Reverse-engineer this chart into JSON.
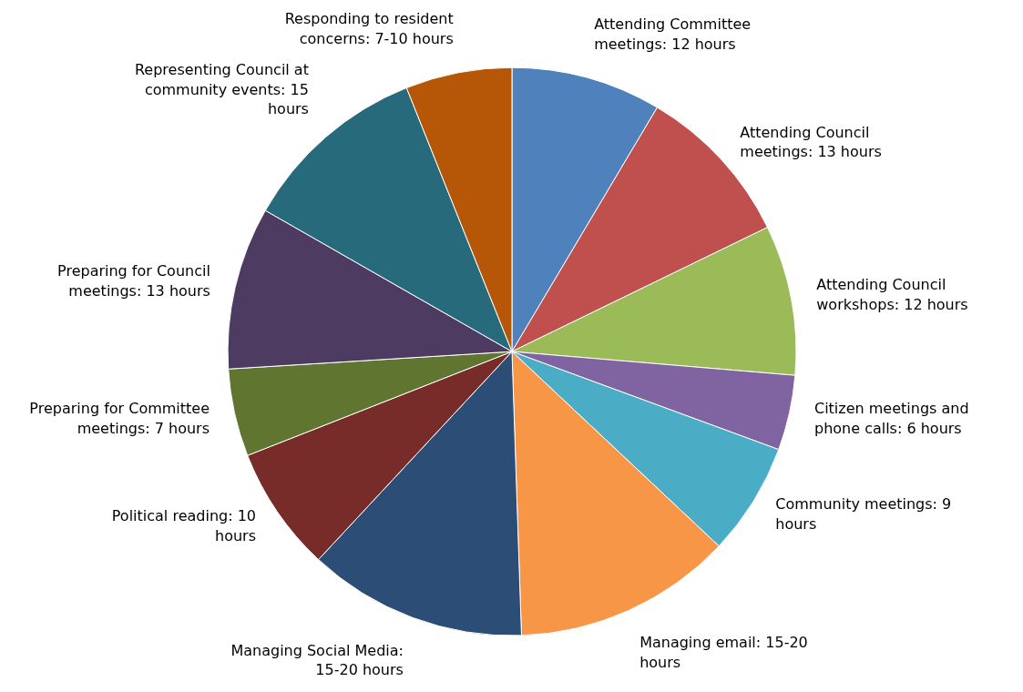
{
  "chart_data": {
    "type": "pie",
    "categories": [
      "Attending Committee meetings: 12 hours",
      "Attending Council meetings: 13 hours",
      "Attending Council workshops: 12 hours",
      "Citizen meetings and phone calls: 6 hours",
      "Community meetings: 9 hours",
      "Managing email: 15-20 hours",
      "Managing Social Media: 15-20 hours",
      "Political reading: 10 hours",
      "Preparing for Committee meetings: 7 hours",
      "Preparing for Council meetings: 13 hours",
      "Representing Council at community events: 15 hours",
      "Responding to resident concerns: 7-10 hours"
    ],
    "values": [
      12,
      13,
      12,
      6,
      9,
      17.5,
      17.5,
      10,
      7,
      13,
      15,
      8.5
    ],
    "colors": [
      "#4f81bd",
      "#c0504d",
      "#9bbb59",
      "#8064a2",
      "#4bacc6",
      "#f79646",
      "#2c4d75",
      "#772c2a",
      "#5f7530",
      "#4d3b62",
      "#276a7c",
      "#b65708"
    ]
  }
}
